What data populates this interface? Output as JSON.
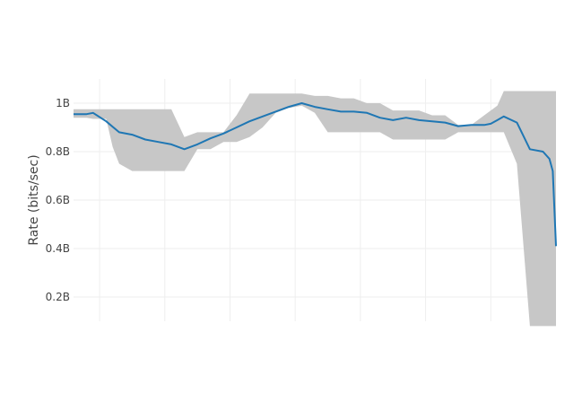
{
  "chart_data": {
    "type": "line",
    "title": "",
    "xlabel": "",
    "ylabel": "Rate (bits/sec)",
    "ylim": [
      0.1,
      1.1
    ],
    "xlim": [
      0,
      74
    ],
    "y_ticks": [
      {
        "value": 0.2,
        "label": "0.2B"
      },
      {
        "value": 0.4,
        "label": "0.4B"
      },
      {
        "value": 0.6,
        "label": "0.6B"
      },
      {
        "value": 0.8,
        "label": "0.8B"
      },
      {
        "value": 1.0,
        "label": "1B"
      }
    ],
    "x_gridlines": [
      4,
      14,
      24,
      34,
      44,
      54,
      64
    ],
    "grid": true,
    "legend": "none",
    "colors": {
      "line": "#1f77b4",
      "band": "#c4c4c4"
    },
    "series": [
      {
        "type": "line",
        "x": [
          0,
          2,
          3,
          5,
          7,
          9,
          11,
          13,
          15,
          17,
          19,
          21,
          23,
          25,
          27,
          29,
          31,
          33,
          35,
          37,
          39,
          41,
          43,
          45,
          47,
          49,
          51,
          53,
          55,
          57,
          59,
          61,
          63,
          64,
          65,
          66,
          68,
          70,
          72,
          73,
          73.5,
          74
        ],
        "y": [
          0.955,
          0.955,
          0.96,
          0.925,
          0.88,
          0.87,
          0.85,
          0.84,
          0.83,
          0.81,
          0.83,
          0.855,
          0.875,
          0.9,
          0.925,
          0.945,
          0.965,
          0.985,
          1.0,
          0.985,
          0.975,
          0.965,
          0.965,
          0.96,
          0.94,
          0.93,
          0.94,
          0.93,
          0.925,
          0.92,
          0.905,
          0.91,
          0.91,
          0.915,
          0.93,
          0.945,
          0.92,
          0.81,
          0.8,
          0.77,
          0.72,
          0.41
        ]
      }
    ],
    "band": {
      "x": [
        0,
        2,
        3,
        5,
        6,
        7,
        9,
        11,
        13,
        15,
        17,
        19,
        21,
        23,
        25,
        27,
        29,
        31,
        33,
        35,
        37,
        39,
        41,
        43,
        45,
        47,
        49,
        51,
        53,
        55,
        57,
        59,
        61,
        63,
        64,
        65,
        66,
        68,
        70,
        72,
        73,
        74
      ],
      "upper": [
        0.975,
        0.975,
        0.975,
        0.975,
        0.975,
        0.975,
        0.975,
        0.975,
        0.975,
        0.975,
        0.86,
        0.88,
        0.88,
        0.88,
        0.95,
        1.04,
        1.04,
        1.04,
        1.04,
        1.04,
        1.03,
        1.03,
        1.02,
        1.02,
        1.0,
        1.0,
        0.97,
        0.97,
        0.97,
        0.95,
        0.95,
        0.91,
        0.91,
        0.95,
        0.97,
        0.99,
        1.05,
        1.05,
        1.05,
        1.05,
        1.05,
        1.05
      ],
      "lower": [
        0.94,
        0.94,
        0.935,
        0.935,
        0.82,
        0.75,
        0.72,
        0.72,
        0.72,
        0.72,
        0.72,
        0.81,
        0.81,
        0.84,
        0.84,
        0.86,
        0.9,
        0.96,
        0.98,
        0.99,
        0.96,
        0.88,
        0.88,
        0.88,
        0.88,
        0.88,
        0.85,
        0.85,
        0.85,
        0.85,
        0.85,
        0.88,
        0.88,
        0.88,
        0.88,
        0.88,
        0.88,
        0.75,
        0.08,
        0.08,
        0.08,
        0.08
      ]
    }
  }
}
